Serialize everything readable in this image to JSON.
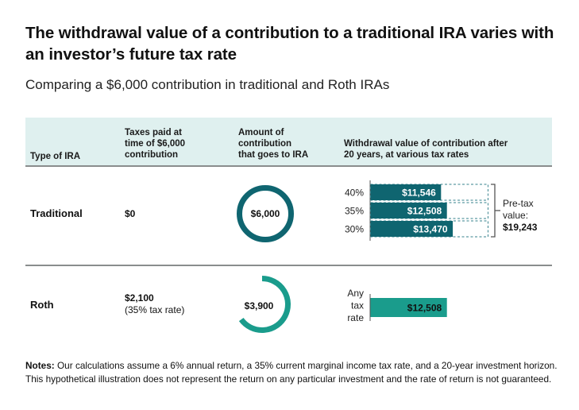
{
  "title": "The withdrawal value of a contribution to a traditional IRA varies with an investor’s future tax rate",
  "subtitle": "Comparing a $6,000 contribution in traditional and Roth IRAs",
  "table": {
    "headers": [
      "Type of IRA",
      "Taxes paid at time of $6,000 contribution",
      "Amount of contribution that goes to IRA",
      "Withdrawal value of contribution after 20 years,  at various tax rates"
    ],
    "header_lines": [
      [
        "Type of IRA"
      ],
      [
        "Taxes paid at",
        "time of $6,000",
        "contribution"
      ],
      [
        "Amount of",
        "contribution",
        "that goes to IRA"
      ],
      [
        "Withdrawal value of contribution after",
        "20 years,  at various tax rates"
      ]
    ],
    "rows": [
      {
        "type": "Traditional",
        "taxes_paid": "$0",
        "taxes_note": "",
        "amount_label": "$6,000"
      },
      {
        "type": "Roth",
        "taxes_paid": "$2,100",
        "taxes_note": "(35% tax rate)",
        "amount_label": "$3,900"
      }
    ]
  },
  "notes": {
    "label": "Notes:",
    "text": " Our calculations assume a 6% annual return, a 35% current marginal income tax rate, and a 20-year investment horizon. This hypothetical illustration does not represent the return on any particular investment and the rate of return is not guaranteed."
  },
  "colors": {
    "traditional": "#0f6570",
    "roth": "#1a9c8c",
    "header_band": "#dff0ef",
    "rule": "#8a8d8d",
    "dashed": "#5e9aa3"
  },
  "chart_data": [
    {
      "type": "donut",
      "name": "traditional-contribution",
      "total": 6000,
      "value": 6000,
      "label": "$6,000"
    },
    {
      "type": "donut",
      "name": "roth-contribution",
      "total": 6000,
      "value": 3900,
      "label": "$3,900"
    },
    {
      "type": "bar",
      "name": "traditional-withdrawal",
      "orientation": "horizontal",
      "categories": [
        "40%",
        "35%",
        "30%"
      ],
      "values": [
        11546,
        12508,
        13470
      ],
      "value_labels": [
        "$11,546",
        "$12,508",
        "$13,470"
      ],
      "reference": {
        "value": 19243,
        "label_lines": [
          "Pre-tax",
          "value:"
        ],
        "value_label": "$19,243",
        "style": "dashed"
      },
      "xlim": [
        0,
        19243
      ]
    },
    {
      "type": "bar",
      "name": "roth-withdrawal",
      "orientation": "horizontal",
      "categories": [
        "Any tax rate"
      ],
      "category_lines": [
        "Any",
        "tax",
        "rate"
      ],
      "values": [
        12508
      ],
      "value_labels": [
        "$12,508"
      ],
      "xlim": [
        0,
        19243
      ]
    }
  ]
}
